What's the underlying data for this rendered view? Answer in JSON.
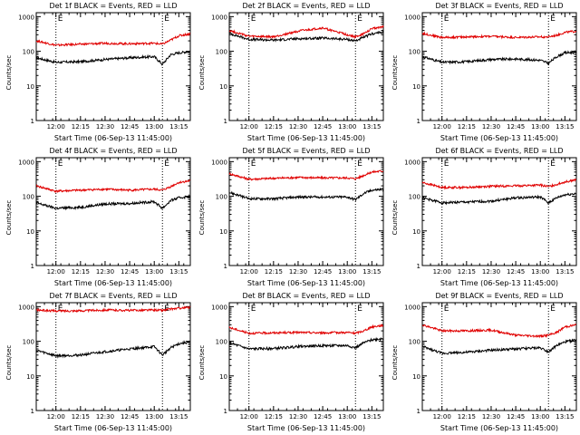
{
  "figure": {
    "background": "#ffffff",
    "colors": {
      "events": "#000000",
      "lld": "#e00000",
      "axis": "#000000"
    }
  },
  "chart_data": [
    {
      "type": "line",
      "title": "Det 1f BLACK = Events, RED = LLD",
      "xlabel": "Start Time (06-Sep-13 11:45:00)",
      "ylabel": "Counts/sec",
      "x_ticks": [
        "12:00",
        "12:15",
        "12:30",
        "12:45",
        "13:00",
        "13:15"
      ],
      "y_ticks": [
        "1",
        "10",
        "100",
        "1000"
      ],
      "yscale": "log",
      "ylim": [
        1,
        1300
      ],
      "xlim": [
        "11:48",
        "13:22"
      ],
      "markers": [
        {
          "time": "12:00",
          "label": "E"
        },
        {
          "time": "13:05",
          "label": "E"
        }
      ],
      "series": [
        {
          "name": "Events",
          "x": [
            "11:48",
            "12:00",
            "12:15",
            "12:30",
            "12:45",
            "13:00",
            "13:05",
            "13:10",
            "13:15",
            "13:22"
          ],
          "y": [
            65,
            48,
            50,
            58,
            65,
            70,
            42,
            80,
            90,
            100
          ]
        },
        {
          "name": "LLD",
          "x": [
            "11:48",
            "12:00",
            "12:15",
            "12:30",
            "12:45",
            "13:00",
            "13:05",
            "13:10",
            "13:15",
            "13:22"
          ],
          "y": [
            200,
            150,
            160,
            170,
            165,
            170,
            160,
            210,
            280,
            320
          ]
        }
      ]
    },
    {
      "type": "line",
      "title": "Det 2f BLACK = Events, RED = LLD",
      "xlabel": "Start Time (06-Sep-13 11:45:00)",
      "ylabel": "Counts/sec",
      "x_ticks": [
        "12:00",
        "12:15",
        "12:30",
        "12:45",
        "13:00",
        "13:15"
      ],
      "y_ticks": [
        "1",
        "10",
        "100",
        "1000"
      ],
      "yscale": "log",
      "ylim": [
        1,
        1300
      ],
      "xlim": [
        "11:48",
        "13:22"
      ],
      "markers": [
        {
          "time": "12:00",
          "label": "E"
        },
        {
          "time": "13:05",
          "label": "E"
        }
      ],
      "series": [
        {
          "name": "Events",
          "x": [
            "11:48",
            "12:00",
            "12:15",
            "12:30",
            "12:45",
            "13:00",
            "13:05",
            "13:10",
            "13:15",
            "13:22"
          ],
          "y": [
            330,
            220,
            210,
            230,
            240,
            220,
            200,
            250,
            320,
            360
          ]
        },
        {
          "name": "LLD",
          "x": [
            "11:48",
            "12:00",
            "12:15",
            "12:30",
            "12:45",
            "13:00",
            "13:05",
            "13:10",
            "13:15",
            "13:22"
          ],
          "y": [
            400,
            270,
            260,
            380,
            470,
            300,
            260,
            320,
            450,
            520
          ]
        }
      ]
    },
    {
      "type": "line",
      "title": "Det 3f BLACK = Events, RED = LLD",
      "xlabel": "Start Time (06-Sep-13 11:45:00)",
      "ylabel": "Counts/sec",
      "x_ticks": [
        "12:00",
        "12:15",
        "12:30",
        "12:45",
        "13:00",
        "13:15"
      ],
      "y_ticks": [
        "1",
        "10",
        "100",
        "1000"
      ],
      "yscale": "log",
      "ylim": [
        1,
        1300
      ],
      "xlim": [
        "11:48",
        "13:22"
      ],
      "markers": [
        {
          "time": "12:00",
          "label": "E"
        },
        {
          "time": "13:05",
          "label": "E"
        }
      ],
      "series": [
        {
          "name": "Events",
          "x": [
            "11:48",
            "12:00",
            "12:15",
            "12:30",
            "12:45",
            "13:00",
            "13:05",
            "13:10",
            "13:15",
            "13:22"
          ],
          "y": [
            70,
            48,
            50,
            58,
            60,
            55,
            45,
            70,
            90,
            95
          ]
        },
        {
          "name": "LLD",
          "x": [
            "11:48",
            "12:00",
            "12:15",
            "12:30",
            "12:45",
            "13:00",
            "13:05",
            "13:10",
            "13:15",
            "13:22"
          ],
          "y": [
            330,
            250,
            260,
            270,
            250,
            260,
            260,
            290,
            350,
            380
          ]
        }
      ]
    },
    {
      "type": "line",
      "title": "Det 4f BLACK = Events, RED = LLD",
      "xlabel": "Start Time (06-Sep-13 11:45:00)",
      "ylabel": "Counts/sec",
      "x_ticks": [
        "12:00",
        "12:15",
        "12:30",
        "12:45",
        "13:00",
        "13:15"
      ],
      "y_ticks": [
        "1",
        "10",
        "100",
        "1000"
      ],
      "yscale": "log",
      "ylim": [
        1,
        1300
      ],
      "xlim": [
        "11:48",
        "13:22"
      ],
      "markers": [
        {
          "time": "12:00",
          "label": "E"
        },
        {
          "time": "13:05",
          "label": "E"
        }
      ],
      "series": [
        {
          "name": "Events",
          "x": [
            "11:48",
            "12:00",
            "12:15",
            "12:30",
            "12:45",
            "13:00",
            "13:05",
            "13:10",
            "13:15",
            "13:22"
          ],
          "y": [
            65,
            45,
            48,
            60,
            62,
            70,
            45,
            75,
            90,
            100
          ]
        },
        {
          "name": "LLD",
          "x": [
            "11:48",
            "12:00",
            "12:15",
            "12:30",
            "12:45",
            "13:00",
            "13:05",
            "13:10",
            "13:15",
            "13:22"
          ],
          "y": [
            200,
            140,
            150,
            160,
            150,
            160,
            150,
            190,
            250,
            280
          ]
        }
      ]
    },
    {
      "type": "line",
      "title": "Det 5f BLACK = Events, RED = LLD",
      "xlabel": "Start Time (06-Sep-13 11:45:00)",
      "ylabel": "Counts/sec",
      "x_ticks": [
        "12:00",
        "12:15",
        "12:30",
        "12:45",
        "13:00",
        "13:15"
      ],
      "y_ticks": [
        "1",
        "10",
        "100",
        "1000"
      ],
      "yscale": "log",
      "ylim": [
        1,
        1300
      ],
      "xlim": [
        "11:48",
        "13:22"
      ],
      "markers": [
        {
          "time": "12:00",
          "label": "E"
        },
        {
          "time": "13:05",
          "label": "E"
        }
      ],
      "series": [
        {
          "name": "Events",
          "x": [
            "11:48",
            "12:00",
            "12:15",
            "12:30",
            "12:45",
            "13:00",
            "13:05",
            "13:10",
            "13:15",
            "13:22"
          ],
          "y": [
            130,
            85,
            85,
            95,
            95,
            95,
            80,
            120,
            150,
            160
          ]
        },
        {
          "name": "LLD",
          "x": [
            "11:48",
            "12:00",
            "12:15",
            "12:30",
            "12:45",
            "13:00",
            "13:05",
            "13:10",
            "13:15",
            "13:22"
          ],
          "y": [
            450,
            310,
            330,
            350,
            340,
            340,
            320,
            400,
            500,
            540
          ]
        }
      ]
    },
    {
      "type": "line",
      "title": "Det 6f BLACK = Events, RED = LLD",
      "xlabel": "Start Time (06-Sep-13 11:45:00)",
      "ylabel": "Counts/sec",
      "x_ticks": [
        "12:00",
        "12:15",
        "12:30",
        "12:45",
        "13:00",
        "13:15"
      ],
      "y_ticks": [
        "1",
        "10",
        "100",
        "1000"
      ],
      "yscale": "log",
      "ylim": [
        1,
        1300
      ],
      "xlim": [
        "11:48",
        "13:22"
      ],
      "markers": [
        {
          "time": "12:00",
          "label": "E"
        },
        {
          "time": "13:05",
          "label": "E"
        }
      ],
      "series": [
        {
          "name": "Events",
          "x": [
            "11:48",
            "12:00",
            "12:15",
            "12:30",
            "12:45",
            "13:00",
            "13:05",
            "13:10",
            "13:15",
            "13:22"
          ],
          "y": [
            90,
            65,
            68,
            72,
            90,
            95,
            65,
            90,
            110,
            120
          ]
        },
        {
          "name": "LLD",
          "x": [
            "11:48",
            "12:00",
            "12:15",
            "12:30",
            "12:45",
            "13:00",
            "13:05",
            "13:10",
            "13:15",
            "13:22"
          ],
          "y": [
            250,
            180,
            180,
            195,
            200,
            210,
            190,
            220,
            260,
            300
          ]
        }
      ]
    },
    {
      "type": "line",
      "title": "Det 7f BLACK = Events, RED = LLD",
      "xlabel": "Start Time (06-Sep-13 11:45:00)",
      "ylabel": "Counts/sec",
      "x_ticks": [
        "12:00",
        "12:15",
        "12:30",
        "12:45",
        "13:00",
        "13:15"
      ],
      "y_ticks": [
        "1",
        "10",
        "100",
        "1000"
      ],
      "yscale": "log",
      "ylim": [
        1,
        1300
      ],
      "xlim": [
        "11:48",
        "13:22"
      ],
      "markers": [
        {
          "time": "12:00",
          "label": "E"
        },
        {
          "time": "13:05",
          "label": "E"
        }
      ],
      "series": [
        {
          "name": "Events",
          "x": [
            "11:48",
            "12:00",
            "12:15",
            "12:30",
            "12:45",
            "13:00",
            "13:05",
            "13:10",
            "13:15",
            "13:22"
          ],
          "y": [
            55,
            38,
            40,
            50,
            60,
            70,
            40,
            65,
            85,
            95
          ]
        },
        {
          "name": "LLD",
          "x": [
            "11:48",
            "12:00",
            "12:15",
            "12:30",
            "12:45",
            "13:00",
            "13:05",
            "13:10",
            "13:15",
            "13:22"
          ],
          "y": [
            800,
            750,
            760,
            800,
            780,
            800,
            780,
            850,
            900,
            950
          ]
        }
      ]
    },
    {
      "type": "line",
      "title": "Det 8f BLACK = Events, RED = LLD",
      "xlabel": "Start Time (06-Sep-13 11:45:00)",
      "ylabel": "Counts/sec",
      "x_ticks": [
        "12:00",
        "12:15",
        "12:30",
        "12:45",
        "13:00",
        "13:15"
      ],
      "y_ticks": [
        "1",
        "10",
        "100",
        "1000"
      ],
      "yscale": "log",
      "ylim": [
        1,
        1300
      ],
      "xlim": [
        "11:48",
        "13:22"
      ],
      "markers": [
        {
          "time": "12:00",
          "label": "E"
        },
        {
          "time": "13:05",
          "label": "E"
        }
      ],
      "series": [
        {
          "name": "Events",
          "x": [
            "11:48",
            "12:00",
            "12:15",
            "12:30",
            "12:45",
            "13:00",
            "13:05",
            "13:10",
            "13:15",
            "13:22"
          ],
          "y": [
            90,
            60,
            62,
            70,
            75,
            75,
            65,
            90,
            110,
            120
          ]
        },
        {
          "name": "LLD",
          "x": [
            "11:48",
            "12:00",
            "12:15",
            "12:30",
            "12:45",
            "13:00",
            "13:05",
            "13:10",
            "13:15",
            "13:22"
          ],
          "y": [
            250,
            170,
            175,
            180,
            175,
            180,
            170,
            200,
            260,
            290
          ]
        }
      ]
    },
    {
      "type": "line",
      "title": "Det 9f BLACK = Events, RED = LLD",
      "xlabel": "Start Time (06-Sep-13 11:45:00)",
      "ylabel": "Counts/sec",
      "x_ticks": [
        "12:00",
        "12:15",
        "12:30",
        "12:45",
        "13:00",
        "13:15"
      ],
      "y_ticks": [
        "1",
        "10",
        "100",
        "1000"
      ],
      "yscale": "log",
      "ylim": [
        1,
        1300
      ],
      "xlim": [
        "11:48",
        "13:22"
      ],
      "markers": [
        {
          "time": "12:00",
          "label": "E"
        },
        {
          "time": "13:05",
          "label": "E"
        }
      ],
      "series": [
        {
          "name": "Events",
          "x": [
            "11:48",
            "12:00",
            "12:15",
            "12:30",
            "12:45",
            "13:00",
            "13:05",
            "13:10",
            "13:15",
            "13:22"
          ],
          "y": [
            70,
            45,
            48,
            55,
            60,
            65,
            50,
            75,
            95,
            110
          ]
        },
        {
          "name": "LLD",
          "x": [
            "11:48",
            "12:00",
            "12:15",
            "12:30",
            "12:45",
            "13:00",
            "13:05",
            "13:10",
            "13:15",
            "13:22"
          ],
          "y": [
            300,
            200,
            200,
            210,
            150,
            140,
            150,
            180,
            260,
            300
          ]
        }
      ]
    }
  ]
}
